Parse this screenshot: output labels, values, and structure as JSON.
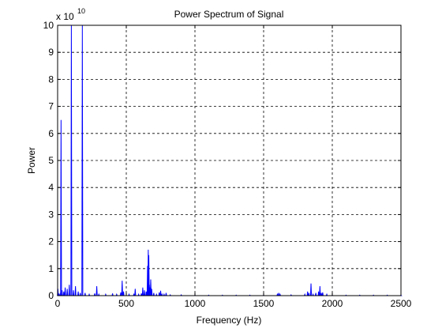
{
  "chart_data": {
    "type": "line",
    "title": "Power Spectrum of Signal",
    "xlabel": "Frequency (Hz)",
    "ylabel": "Power",
    "y_multiplier_base": "x 10",
    "y_multiplier_exp": "10",
    "xlim": [
      0,
      2500
    ],
    "ylim": [
      0,
      10
    ],
    "xticks": [
      0,
      500,
      1000,
      1500,
      2000,
      2500
    ],
    "yticks": [
      0,
      1,
      2,
      3,
      4,
      5,
      6,
      7,
      8,
      9,
      10
    ],
    "grid": true,
    "line_color": "#0000ff",
    "series": [
      {
        "peaks": [
          [
            2,
            0.25
          ],
          [
            10,
            0.05
          ],
          [
            20,
            0.1
          ],
          [
            25,
            6.5
          ],
          [
            32,
            0.2
          ],
          [
            45,
            0.15
          ],
          [
            55,
            0.3
          ],
          [
            70,
            0.25
          ],
          [
            85,
            0.4
          ],
          [
            100,
            10
          ],
          [
            115,
            0.2
          ],
          [
            130,
            0.35
          ],
          [
            150,
            0.15
          ],
          [
            165,
            0.1
          ],
          [
            180,
            10
          ],
          [
            200,
            0.1
          ],
          [
            230,
            0.05
          ],
          [
            270,
            0.08
          ],
          [
            285,
            0.35
          ],
          [
            300,
            0.05
          ],
          [
            350,
            0.05
          ],
          [
            400,
            0.08
          ],
          [
            430,
            0.05
          ],
          [
            460,
            0.12
          ],
          [
            470,
            0.55
          ],
          [
            480,
            0.15
          ],
          [
            520,
            0.05
          ],
          [
            555,
            0.05
          ],
          [
            565,
            0.25
          ],
          [
            590,
            0.05
          ],
          [
            610,
            0.08
          ],
          [
            620,
            0.3
          ],
          [
            632,
            0.2
          ],
          [
            645,
            0.15
          ],
          [
            655,
            1.1
          ],
          [
            660,
            1.7
          ],
          [
            664,
            1.5
          ],
          [
            668,
            0.4
          ],
          [
            672,
            0.3
          ],
          [
            678,
            0.6
          ],
          [
            685,
            0.25
          ],
          [
            700,
            0.1
          ],
          [
            720,
            0.05
          ],
          [
            740,
            0.12
          ],
          [
            750,
            0.18
          ],
          [
            760,
            0.05
          ],
          [
            775,
            0.05
          ],
          [
            790,
            0.1
          ],
          [
            820,
            0.03
          ],
          [
            900,
            0.03
          ],
          [
            1000,
            0.02
          ],
          [
            1100,
            0.02
          ],
          [
            1200,
            0.02
          ],
          [
            1300,
            0.02
          ],
          [
            1400,
            0.02
          ],
          [
            1500,
            0.02
          ],
          [
            1600,
            0.05
          ],
          [
            1610,
            0.1
          ],
          [
            1620,
            0.05
          ],
          [
            1700,
            0.03
          ],
          [
            1800,
            0.05
          ],
          [
            1820,
            0.15
          ],
          [
            1830,
            0.1
          ],
          [
            1845,
            0.45
          ],
          [
            1860,
            0.05
          ],
          [
            1880,
            0.1
          ],
          [
            1900,
            0.15
          ],
          [
            1910,
            0.35
          ],
          [
            1920,
            0.1
          ],
          [
            1930,
            0.12
          ],
          [
            1960,
            0.05
          ],
          [
            2000,
            0.02
          ],
          [
            2100,
            0.02
          ],
          [
            2200,
            0.02
          ],
          [
            2300,
            0.02
          ],
          [
            2400,
            0.02
          ],
          [
            2500,
            0.02
          ]
        ]
      }
    ]
  }
}
